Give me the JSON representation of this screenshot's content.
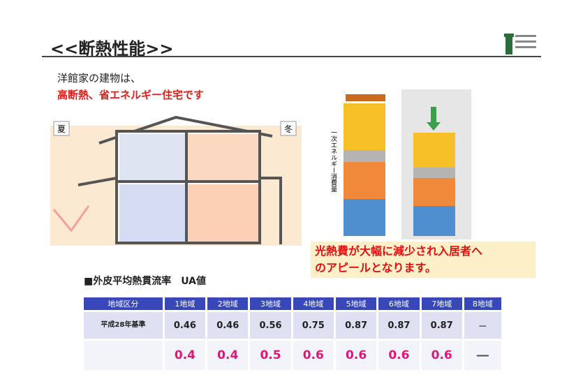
{
  "header": {
    "title": "<<断熱性能>>"
  },
  "intro": {
    "line1": "洋館家の建物は、",
    "line2": "高断熱、省エネルギー住宅です"
  },
  "house": {
    "summer": "夏",
    "winter": "冬"
  },
  "energy": {
    "axis_label": "一次エネルギー消費量"
  },
  "callout": {
    "line1": "光熱費が大幅に減少され入居者へ",
    "line2": "のアピールとなります。"
  },
  "table": {
    "heading": "■外皮平均熱貫流率　UA値",
    "columns": [
      "地域区分",
      "1地域",
      "2地域",
      "3地域",
      "4地域",
      "5地域",
      "6地域",
      "7地域",
      "8地域"
    ],
    "rows": [
      {
        "label": "平成28年基準",
        "values": [
          0.46,
          0.46,
          0.56,
          0.75,
          0.87,
          0.87,
          0.87,
          "－"
        ]
      },
      {
        "values": [
          0.4,
          0.4,
          0.5,
          0.6,
          0.6,
          0.6,
          0.6,
          "―"
        ]
      }
    ]
  }
}
